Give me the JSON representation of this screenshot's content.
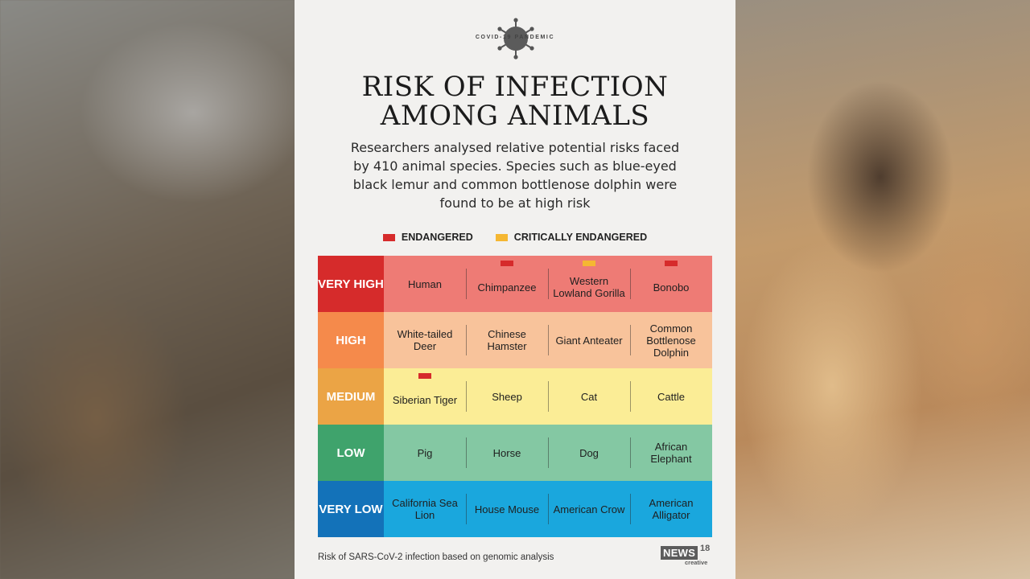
{
  "badge": {
    "label": "COVID-19 PANDEMIC",
    "icon": "virus-icon"
  },
  "title_line1": "RISK OF INFECTION",
  "title_line2": "AMONG ANIMALS",
  "subtitle": "Researchers analysed relative potential risks faced by 410 animal species. Species such as blue-eyed black lemur and common bottlenose dolphin were found to be at high risk",
  "legend": {
    "endangered": {
      "label": "ENDANGERED",
      "color": "#d62b2b"
    },
    "critically_endangered": {
      "label": "CRITICALLY ENDANGERED",
      "color": "#f5b732"
    }
  },
  "rows": [
    {
      "label": "VERY HIGH",
      "label_color": "#d62b2b",
      "cell_color": "#ee7b75",
      "cells": [
        {
          "name": "Human",
          "status": ""
        },
        {
          "name": "Chimpanzee",
          "status": "endangered"
        },
        {
          "name": "Western Lowland Gorilla",
          "status": "critically_endangered"
        },
        {
          "name": "Bonobo",
          "status": "endangered"
        }
      ]
    },
    {
      "label": "HIGH",
      "label_color": "#f58a4b",
      "cell_color": "#f8c39b",
      "cells": [
        {
          "name": "White-tailed Deer",
          "status": ""
        },
        {
          "name": "Chinese Hamster",
          "status": ""
        },
        {
          "name": "Giant Anteater",
          "status": ""
        },
        {
          "name": "Common Bottlenose Dolphin",
          "status": ""
        }
      ]
    },
    {
      "label": "MEDIUM",
      "label_color": "#eba445",
      "cell_color": "#fbed96",
      "cells": [
        {
          "name": "Siberian Tiger",
          "status": "endangered"
        },
        {
          "name": "Sheep",
          "status": ""
        },
        {
          "name": "Cat",
          "status": ""
        },
        {
          "name": "Cattle",
          "status": ""
        }
      ]
    },
    {
      "label": "LOW",
      "label_color": "#3fa36c",
      "cell_color": "#84c8a3",
      "cells": [
        {
          "name": "Pig",
          "status": ""
        },
        {
          "name": "Horse",
          "status": ""
        },
        {
          "name": "Dog",
          "status": ""
        },
        {
          "name": "African Elephant",
          "status": ""
        }
      ]
    },
    {
      "label": "VERY LOW",
      "label_color": "#1372b9",
      "cell_color": "#1aa7dd",
      "cells": [
        {
          "name": "California Sea Lion",
          "status": ""
        },
        {
          "name": "House Mouse",
          "status": ""
        },
        {
          "name": "American Crow",
          "status": ""
        },
        {
          "name": "American Alligator",
          "status": ""
        }
      ]
    }
  ],
  "footer_note": "Risk of SARS-CoV-2 infection based on genomic analysis",
  "logo": {
    "news": "NEWS",
    "number": "18",
    "tag": "creative"
  }
}
